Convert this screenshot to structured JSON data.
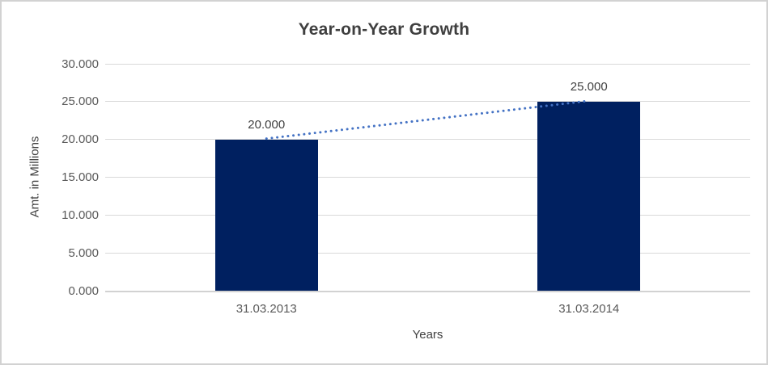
{
  "colors": {
    "bar": "#002060",
    "trendline": "#4472C4",
    "gridline": "#d9d9d9",
    "axis_line": "#d2d2d2",
    "title_text": "#3f3f3f",
    "tick_text": "#595959",
    "label_text": "#404040",
    "frame_border": "#d2d2d2",
    "background": "#ffffff"
  },
  "chart_data": {
    "type": "bar",
    "title": "Year-on-Year Growth",
    "categories": [
      "31.03.2013",
      "31.03.2014"
    ],
    "values": [
      20,
      25
    ],
    "value_labels": [
      "20.000",
      "25.000"
    ],
    "yticks": [
      "0.000",
      "5.000",
      "10.000",
      "15.000",
      "20.000",
      "25.000",
      "30.000"
    ],
    "ytick_values": [
      0,
      5,
      10,
      15,
      20,
      25,
      30
    ],
    "ylim": [
      0,
      30
    ],
    "xlabel": "Years",
    "ylabel": "Amt. in Millions",
    "grid": true,
    "legend": "none",
    "trendline": {
      "type": "linear",
      "style": "dotted",
      "from": 20,
      "to": 25
    }
  }
}
